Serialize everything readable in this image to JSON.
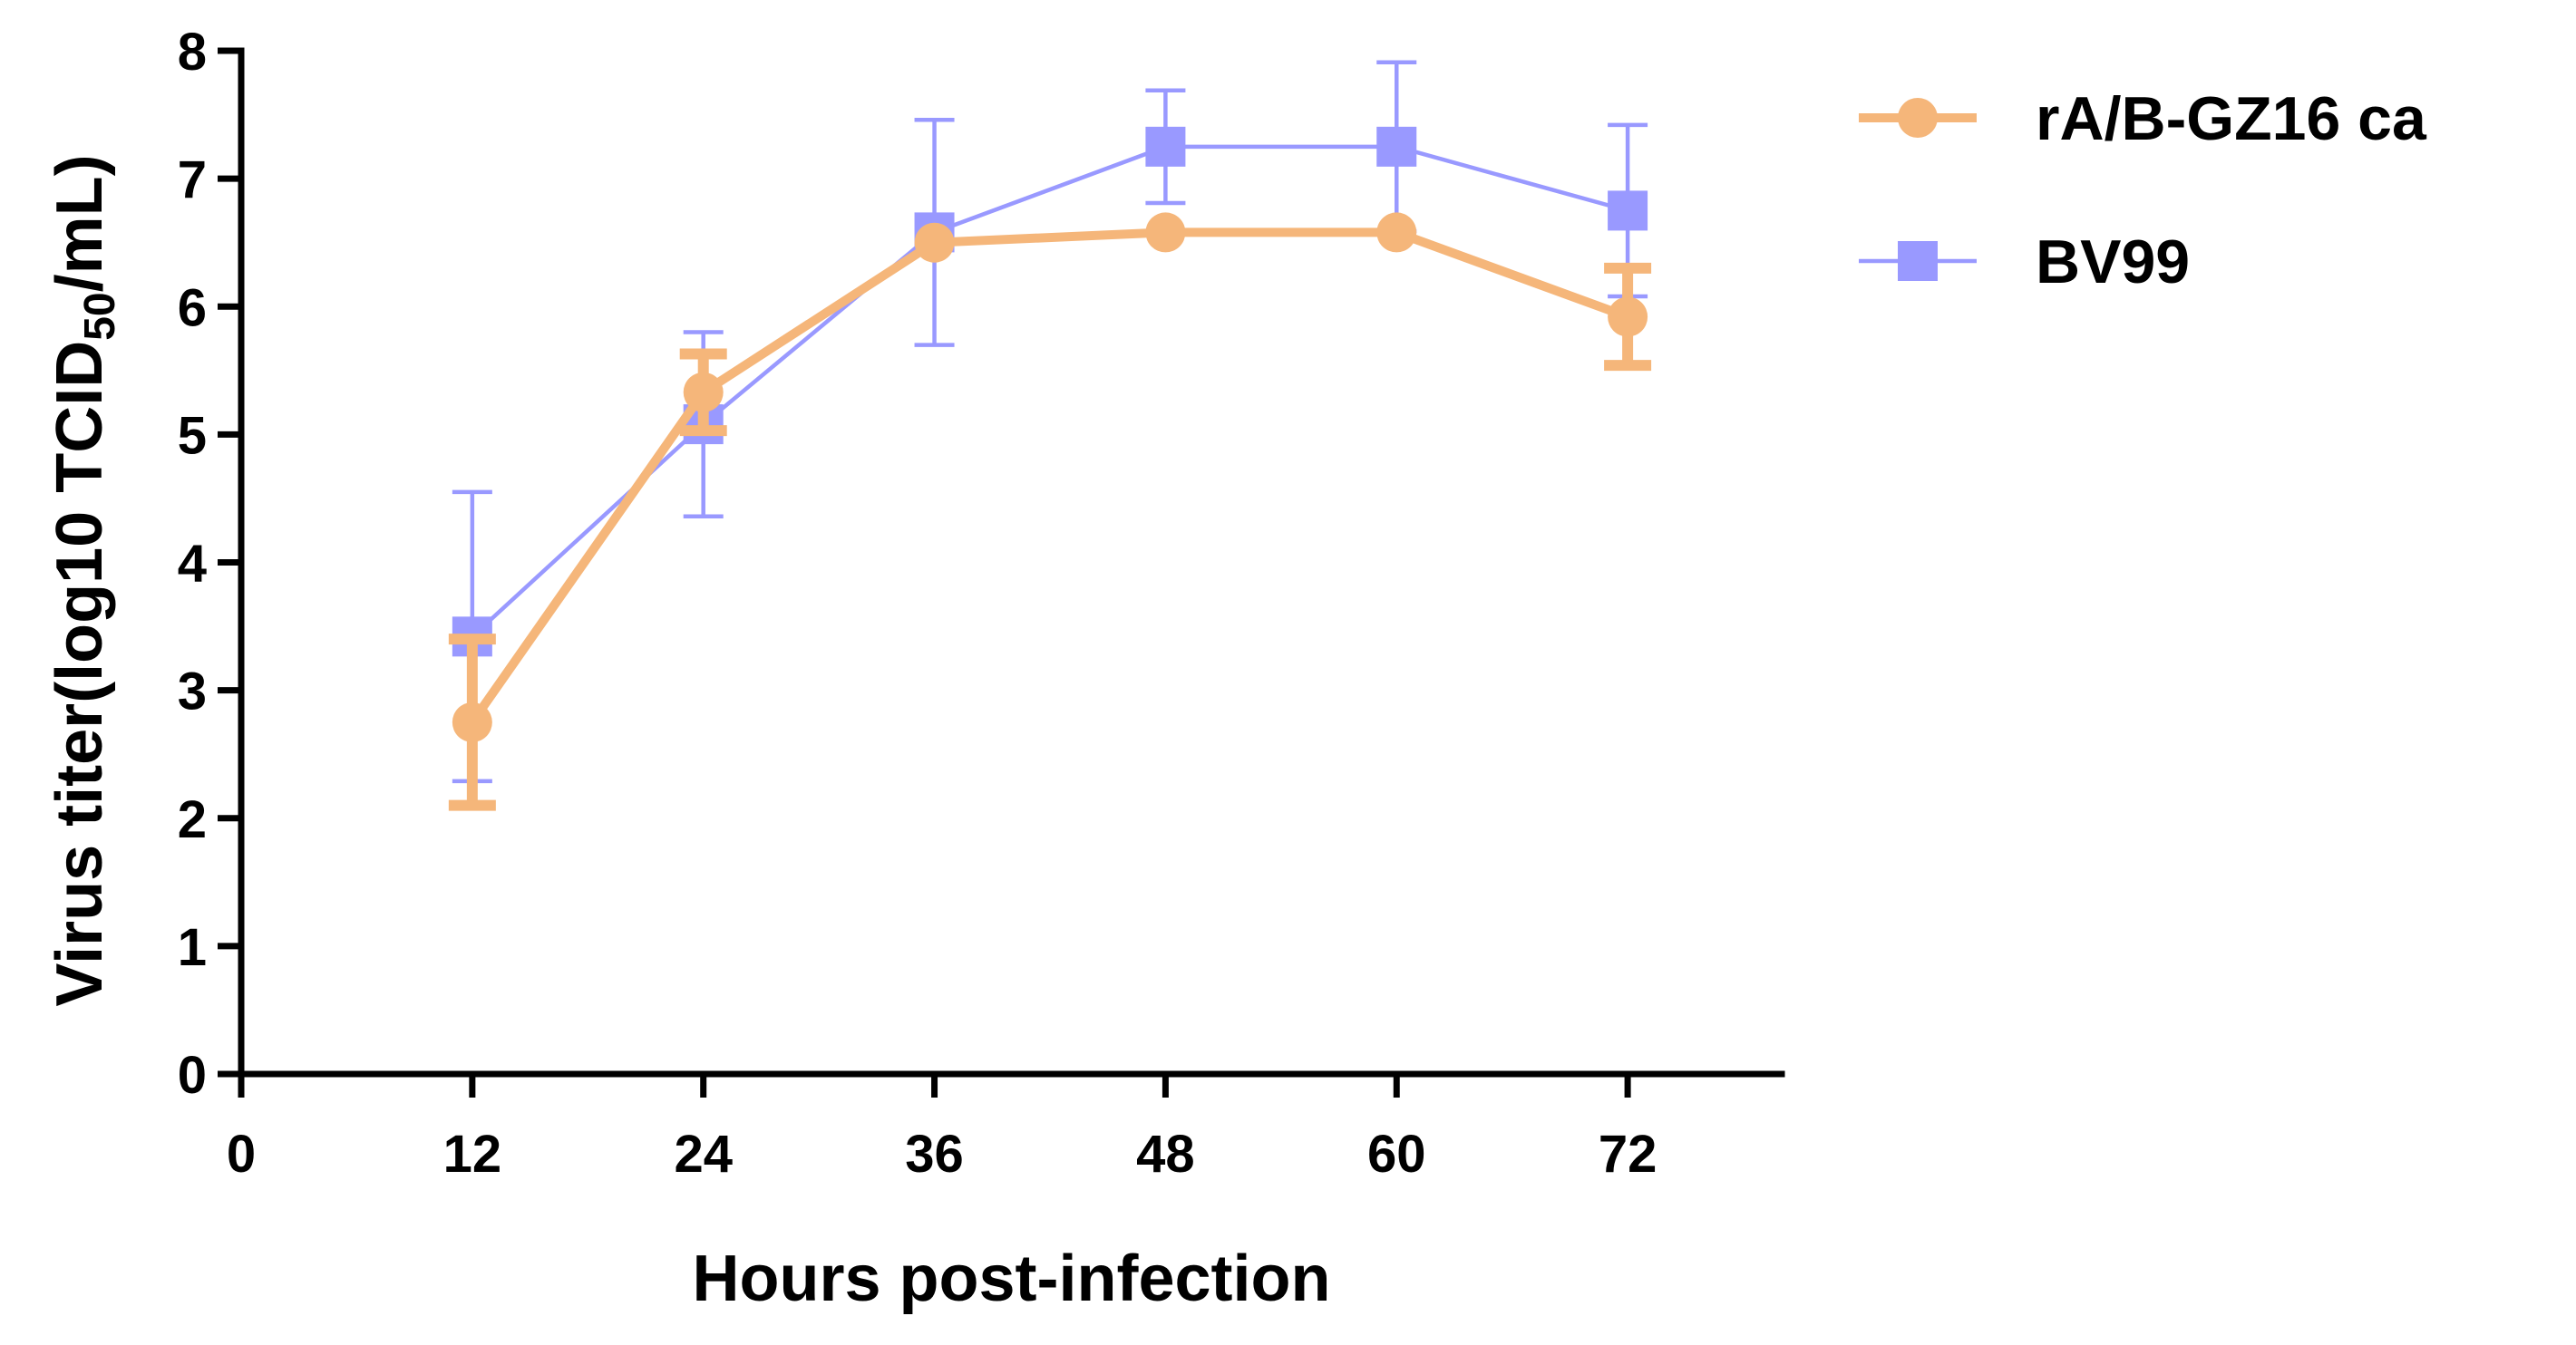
{
  "chart_data": {
    "type": "line",
    "title": "",
    "xlabel": "Hours post-infection",
    "ylabel": {
      "prefix": "Virus titer(log10 TCID",
      "subscript": "50",
      "suffix": "/mL)"
    },
    "x": [
      12,
      24,
      36,
      48,
      60,
      72
    ],
    "xlim": [
      0,
      80
    ],
    "ylim": [
      0,
      8
    ],
    "xticks": [
      0,
      12,
      24,
      36,
      48,
      60,
      72
    ],
    "yticks": [
      0,
      1,
      2,
      3,
      4,
      5,
      6,
      7,
      8
    ],
    "grid": false,
    "legend_position": "top-right",
    "series": [
      {
        "name": "rA/B-GZ16 ca",
        "marker": "circle",
        "color": "#F5B67A",
        "values": [
          2.75,
          5.33,
          6.5,
          6.58,
          6.58,
          5.92
        ],
        "errors": [
          0.65,
          0.3,
          0.0,
          0.0,
          0.0,
          0.38
        ]
      },
      {
        "name": "BV99",
        "marker": "square",
        "color": "#9999FF",
        "values": [
          3.42,
          5.08,
          6.58,
          7.25,
          7.25,
          6.75
        ],
        "errors": [
          1.13,
          0.72,
          0.88,
          0.44,
          0.66,
          0.67
        ]
      }
    ]
  }
}
